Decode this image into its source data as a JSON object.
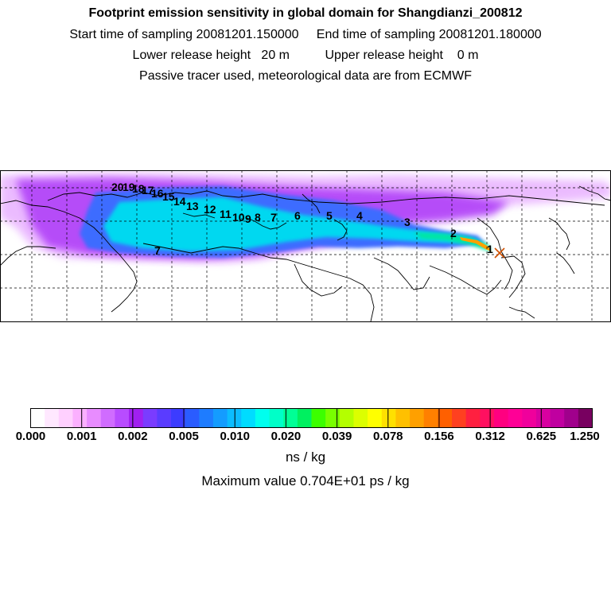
{
  "header": {
    "title": "Footprint emission sensitivity in global domain for Shangdianzi_200812",
    "line2": "Start time of sampling 20081201.150000     End time of sampling 20081201.180000",
    "line3": "Lower release height   20 m          Upper release height    0 m",
    "line4": "Passive tracer used, meteorological data are from ECMWF"
  },
  "map": {
    "station_marker": "x-mark",
    "trajectory_labels": [
      "1",
      "2",
      "3",
      "4",
      "5",
      "6",
      "7",
      "8",
      "9",
      "10",
      "11",
      "12",
      "13",
      "14",
      "15",
      "16",
      "17",
      "18",
      "19",
      "20"
    ],
    "colors": {
      "land_outline": "#000000",
      "grid": "#000000",
      "plume_core": "#00e6e6",
      "plume_edge": "#c060ff",
      "plume_hot": "#ffa000"
    }
  },
  "colorbar": {
    "tick_labels": [
      "0.000",
      "0.001",
      "0.002",
      "0.005",
      "0.010",
      "0.020",
      "0.039",
      "0.078",
      "0.156",
      "0.312",
      "0.625",
      "1.250"
    ],
    "colors": [
      "#ffffff",
      "#ffe8ff",
      "#ffd0ff",
      "#fbb0ff",
      "#e88cff",
      "#d06cff",
      "#b84cff",
      "#a020f0",
      "#7a3cff",
      "#5a3cff",
      "#3c3cff",
      "#2a5cff",
      "#1e7cff",
      "#149cff",
      "#0cbcff",
      "#00dcff",
      "#00ffee",
      "#00ffc8",
      "#00ff96",
      "#00f060",
      "#3cff00",
      "#78ff00",
      "#b4ff00",
      "#dcff00",
      "#ffff00",
      "#ffe000",
      "#ffc000",
      "#ffa000",
      "#ff8000",
      "#ff6000",
      "#ff4020",
      "#ff2040",
      "#ff1060",
      "#ff0080",
      "#ff0096",
      "#f0009c",
      "#d800a0",
      "#c000a0",
      "#a0008c",
      "#780060"
    ],
    "units": "ns / kg",
    "max_text": "Maximum value  0.704E+01 ps / kg"
  }
}
